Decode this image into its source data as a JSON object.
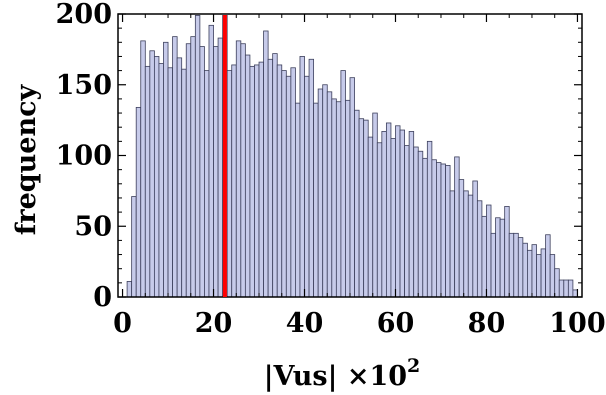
{
  "chart_data": {
    "type": "bar",
    "title": "",
    "xlabel": "|Vus| ×10",
    "xlabel_superscript": "2",
    "ylabel": "frequency",
    "xlim": [
      -1,
      101
    ],
    "ylim": [
      0,
      200
    ],
    "x_ticks": [
      "0",
      "20",
      "40",
      "60",
      "80",
      "100"
    ],
    "y_ticks": [
      "0",
      "50",
      "100",
      "150",
      "200"
    ],
    "bin_width": 1,
    "bin_starts": [
      1,
      2,
      3,
      4,
      5,
      6,
      7,
      8,
      9,
      10,
      11,
      12,
      13,
      14,
      15,
      16,
      17,
      18,
      19,
      20,
      21,
      22,
      23,
      24,
      25,
      26,
      27,
      28,
      29,
      30,
      31,
      32,
      33,
      34,
      35,
      36,
      37,
      38,
      39,
      40,
      41,
      42,
      43,
      44,
      45,
      46,
      47,
      48,
      49,
      50,
      51,
      52,
      53,
      54,
      55,
      56,
      57,
      58,
      59,
      60,
      61,
      62,
      63,
      64,
      65,
      66,
      67,
      68,
      69,
      70,
      71,
      72,
      73,
      74,
      75,
      76,
      77,
      78,
      79,
      80,
      81,
      82,
      83,
      84,
      85,
      86,
      87,
      88,
      89,
      90,
      91,
      92,
      93,
      94,
      95,
      96,
      97,
      98,
      99
    ],
    "values": [
      11,
      71,
      134,
      181,
      163,
      174,
      170,
      165,
      180,
      162,
      184,
      169,
      161,
      179,
      184,
      199,
      177,
      160,
      192,
      177,
      183,
      199,
      160,
      164,
      181,
      179,
      171,
      163,
      164,
      166,
      188,
      168,
      172,
      164,
      160,
      156,
      162,
      137,
      170,
      156,
      168,
      137,
      147,
      150,
      145,
      140,
      138,
      160,
      139,
      155,
      132,
      126,
      125,
      113,
      130,
      109,
      117,
      123,
      112,
      121,
      118,
      107,
      117,
      106,
      103,
      98,
      110,
      97,
      95,
      94,
      93,
      75,
      99,
      83,
      75,
      72,
      82,
      68,
      57,
      65,
      45,
      56,
      55,
      64,
      45,
      45,
      42,
      38,
      33,
      37,
      30,
      34,
      44,
      30,
      20,
      12,
      12,
      12,
      5
    ],
    "marker_line": {
      "x": 22.5,
      "color": "#ff0000"
    },
    "colors": {
      "bar_fill": "#c7cbea",
      "bar_edge": "#3c3f5c",
      "axis": "#000000"
    }
  }
}
